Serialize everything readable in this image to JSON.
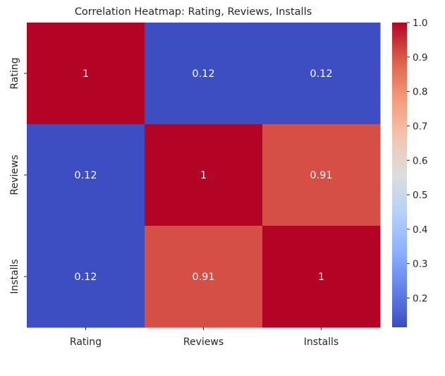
{
  "chart_data": {
    "type": "heatmap",
    "title": "Correlation Heatmap: Rating, Reviews, Installs",
    "xlabel": "",
    "ylabel": "",
    "x_categories": [
      "Rating",
      "Reviews",
      "Installs"
    ],
    "y_categories": [
      "Rating",
      "Reviews",
      "Installs"
    ],
    "values": [
      [
        1,
        0.12,
        0.12
      ],
      [
        0.12,
        1,
        0.91
      ],
      [
        0.12,
        0.91,
        1
      ]
    ],
    "annotations": [
      [
        "1",
        "0.12",
        "0.12"
      ],
      [
        "0.12",
        "1",
        "0.91"
      ],
      [
        "0.12",
        "0.91",
        "1"
      ]
    ],
    "colormap": "coolwarm",
    "colorbar": {
      "min": 0.115,
      "max": 1.0,
      "ticks": [
        0.2,
        0.3,
        0.4,
        0.5,
        0.6,
        0.7,
        0.8,
        0.9,
        1.0
      ],
      "tick_labels": [
        "0.2",
        "0.3",
        "0.4",
        "0.5",
        "0.6",
        "0.7",
        "0.8",
        "0.9",
        "1.0"
      ]
    },
    "grid": false
  }
}
